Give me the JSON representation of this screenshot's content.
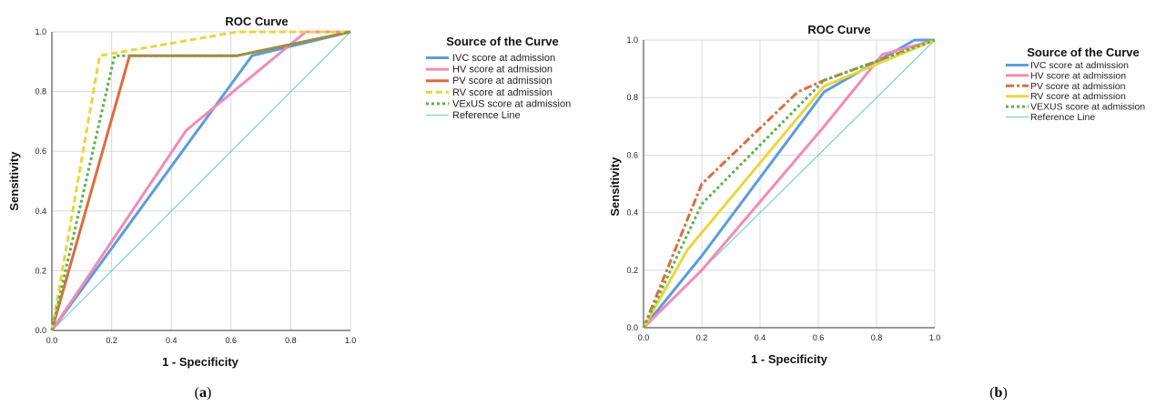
{
  "colors": {
    "IVC": "#5b9be0",
    "HV": "#f28bb5",
    "PV": "#e06b3c",
    "RV": "#ecd53a",
    "VExUS": "#5cb14a",
    "Reference": "#7fcfc4",
    "grid": "#d8d8d8",
    "axis": "#333333"
  },
  "chart_data": [
    {
      "type": "line",
      "panel_label": "a",
      "title": "ROC Curve",
      "xlabel": "1 - Specificity",
      "ylabel": "Sensitivity",
      "xlim": [
        0,
        1
      ],
      "ylim": [
        0,
        1
      ],
      "xticks": [
        "0.0",
        "0.2",
        "0.4",
        "0.6",
        "0.8",
        "1.0"
      ],
      "yticks": [
        "0.0",
        "0.2",
        "0.4",
        "0.6",
        "0.8",
        "1.0"
      ],
      "grid": true,
      "legend_title": "Source of the Curve",
      "legend_placement": "right",
      "series": [
        {
          "name": "IVC score at admission",
          "key": "IVC",
          "dash": "solid",
          "points": [
            [
              0,
              0
            ],
            [
              0.67,
              0.92
            ],
            [
              1,
              1
            ]
          ]
        },
        {
          "name": "HV score at admission",
          "key": "HV",
          "dash": "solid",
          "points": [
            [
              0,
              0
            ],
            [
              0.45,
              0.67
            ],
            [
              0.85,
              1.0
            ],
            [
              1,
              1
            ]
          ]
        },
        {
          "name": "PV score at admission",
          "key": "PV",
          "dash": "solid",
          "points": [
            [
              0,
              0
            ],
            [
              0.26,
              0.92
            ],
            [
              0.62,
              0.92
            ],
            [
              1,
              1
            ]
          ]
        },
        {
          "name": "RV score at admission",
          "key": "RV",
          "dash": "dash",
          "points": [
            [
              0,
              0
            ],
            [
              0.16,
              0.92
            ],
            [
              0.62,
              1.0
            ],
            [
              1,
              1
            ]
          ]
        },
        {
          "name": "VExUS score at admission",
          "key": "VExUS",
          "dash": "dot",
          "points": [
            [
              0,
              0
            ],
            [
              0.21,
              0.92
            ],
            [
              0.62,
              0.92
            ],
            [
              1,
              1
            ]
          ]
        },
        {
          "name": "Reference Line",
          "key": "Reference",
          "dash": "solid",
          "points": [
            [
              0,
              0
            ],
            [
              1,
              1
            ]
          ]
        }
      ]
    },
    {
      "type": "line",
      "panel_label": "b",
      "title": "ROC Curve",
      "xlabel": "1 - Specificity",
      "ylabel": "Sensitivity",
      "xlim": [
        0,
        1
      ],
      "ylim": [
        0,
        1
      ],
      "xticks": [
        "0.0",
        "0.2",
        "0.4",
        "0.6",
        "0.8",
        "1.0"
      ],
      "yticks": [
        "0.0",
        "0.2",
        "0.4",
        "0.6",
        "0.8",
        "1.0"
      ],
      "grid": true,
      "legend_title": "Source of the Curve",
      "legend_placement": "right",
      "series": [
        {
          "name": "IVC score at admission",
          "key": "IVC",
          "dash": "solid",
          "points": [
            [
              0,
              0
            ],
            [
              0.2,
              0.25
            ],
            [
              0.62,
              0.82
            ],
            [
              0.93,
              1.0
            ],
            [
              1,
              1
            ]
          ]
        },
        {
          "name": "HV score at admission",
          "key": "HV",
          "dash": "solid",
          "points": [
            [
              0,
              0
            ],
            [
              0.2,
              0.2
            ],
            [
              0.62,
              0.7
            ],
            [
              0.82,
              0.95
            ],
            [
              1,
              1
            ]
          ]
        },
        {
          "name": "PV score at admission",
          "key": "PV",
          "dash": "dashdot",
          "points": [
            [
              0,
              0
            ],
            [
              0.2,
              0.5
            ],
            [
              0.53,
              0.82
            ],
            [
              0.62,
              0.86
            ],
            [
              1,
              1
            ]
          ]
        },
        {
          "name": "RV score at admission",
          "key": "RV",
          "dash": "solid",
          "points": [
            [
              0,
              0
            ],
            [
              0.15,
              0.27
            ],
            [
              0.62,
              0.84
            ],
            [
              1,
              1
            ]
          ]
        },
        {
          "name": "VEXUS score at admission",
          "key": "VExUS",
          "dash": "dot",
          "points": [
            [
              0,
              0
            ],
            [
              0.2,
              0.43
            ],
            [
              0.62,
              0.86
            ],
            [
              1,
              1
            ]
          ]
        },
        {
          "name": "Reference Line",
          "key": "Reference",
          "dash": "solid",
          "points": [
            [
              0,
              0
            ],
            [
              1,
              1
            ]
          ]
        }
      ]
    }
  ]
}
